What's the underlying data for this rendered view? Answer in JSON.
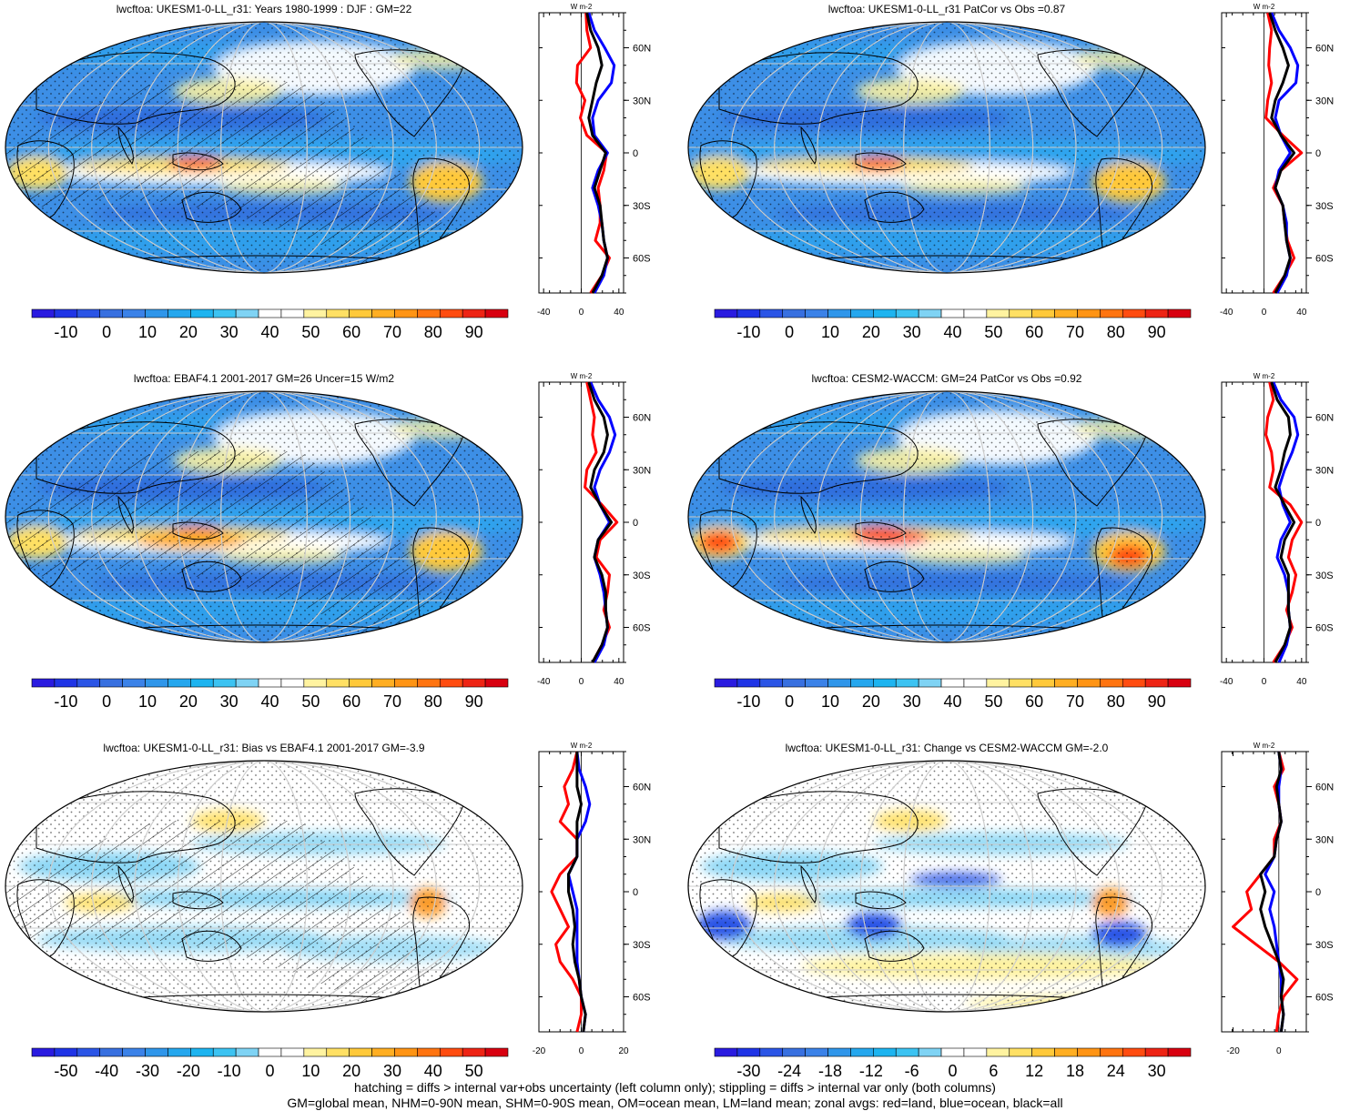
{
  "chart_data": [
    {
      "type": "heatmap",
      "title": "lwcftoa: UKESM1-0-LL_r31: Years 1980-1999 : DJF : GM=22",
      "colorbar": {
        "ticks": [
          "-10",
          "0",
          "10",
          "20",
          "30",
          "40",
          "50",
          "60",
          "70",
          "80",
          "90"
        ],
        "range": [
          -15,
          95
        ],
        "palette": "full"
      },
      "lat_labels": [
        "60N",
        "30N",
        "0",
        "30S",
        "60S"
      ],
      "zonal": {
        "xticks": [
          "-40",
          "0",
          "40"
        ],
        "xlim": [
          -45,
          45
        ],
        "unit": "W m-2",
        "lat": [
          80,
          70,
          60,
          50,
          40,
          30,
          20,
          10,
          0,
          -10,
          -20,
          -30,
          -40,
          -50,
          -60,
          -70,
          -80
        ],
        "land": [
          5,
          6,
          10,
          -4,
          -5,
          4,
          -1,
          6,
          27,
          24,
          18,
          20,
          20,
          15,
          30,
          22,
          10
        ],
        "ocean": [
          8,
          14,
          25,
          35,
          32,
          18,
          12,
          14,
          28,
          18,
          12,
          18,
          22,
          24,
          28,
          24,
          14
        ],
        "all": [
          6,
          10,
          18,
          22,
          16,
          12,
          8,
          12,
          26,
          20,
          14,
          20,
          22,
          24,
          28,
          22,
          12
        ]
      }
    },
    {
      "type": "heatmap",
      "title": "lwcftoa: UKESM1-0-LL_r31 PatCor vs Obs =0.87",
      "colorbar": {
        "ticks": [
          "-10",
          "0",
          "10",
          "20",
          "30",
          "40",
          "50",
          "60",
          "70",
          "80",
          "90"
        ],
        "range": [
          -15,
          95
        ],
        "palette": "full"
      },
      "lat_labels": [
        "60N",
        "30N",
        "0",
        "30S",
        "60S"
      ],
      "zonal": {
        "xticks": [
          "-40",
          "0",
          "40"
        ],
        "xlim": [
          -45,
          45
        ],
        "unit": "W m-2",
        "lat": [
          80,
          70,
          60,
          50,
          40,
          30,
          20,
          10,
          0,
          -10,
          -20,
          -30,
          -40,
          -50,
          -60,
          -70,
          -80
        ],
        "land": [
          4,
          8,
          6,
          5,
          8,
          4,
          2,
          20,
          40,
          18,
          10,
          20,
          22,
          25,
          32,
          22,
          10
        ],
        "ocean": [
          8,
          16,
          28,
          36,
          34,
          16,
          12,
          18,
          28,
          16,
          12,
          20,
          24,
          24,
          28,
          24,
          14
        ],
        "all": [
          6,
          12,
          20,
          26,
          20,
          12,
          8,
          18,
          32,
          18,
          12,
          20,
          22,
          24,
          28,
          22,
          12
        ]
      }
    },
    {
      "type": "heatmap",
      "title": "lwcftoa: EBAF4.1 2001-2017 GM=26 Uncer=15 W/m2",
      "colorbar": {
        "ticks": [
          "-10",
          "0",
          "10",
          "20",
          "30",
          "40",
          "50",
          "60",
          "70",
          "80",
          "90"
        ],
        "range": [
          -15,
          95
        ],
        "palette": "full"
      },
      "lat_labels": [
        "60N",
        "30N",
        "0",
        "30S",
        "60S"
      ],
      "zonal": {
        "xticks": [
          "-40",
          "0",
          "40"
        ],
        "xlim": [
          -45,
          45
        ],
        "unit": "W m-2",
        "lat": [
          80,
          70,
          60,
          50,
          40,
          30,
          20,
          10,
          0,
          -10,
          -20,
          -30,
          -40,
          -50,
          -60,
          -70,
          -80
        ],
        "land": [
          6,
          10,
          14,
          12,
          16,
          6,
          4,
          22,
          38,
          20,
          16,
          30,
          28,
          24,
          30,
          22,
          12
        ],
        "ocean": [
          10,
          18,
          30,
          36,
          30,
          20,
          14,
          20,
          30,
          18,
          14,
          20,
          24,
          26,
          28,
          24,
          14
        ],
        "all": [
          8,
          14,
          24,
          28,
          24,
          14,
          10,
          20,
          32,
          18,
          14,
          22,
          26,
          26,
          28,
          22,
          12
        ]
      }
    },
    {
      "type": "heatmap",
      "title": "lwcftoa: CESM2-WACCM: GM=24 PatCor vs Obs =0.92",
      "colorbar": {
        "ticks": [
          "-10",
          "0",
          "10",
          "20",
          "30",
          "40",
          "50",
          "60",
          "70",
          "80",
          "90"
        ],
        "range": [
          -15,
          95
        ],
        "palette": "full"
      },
      "lat_labels": [
        "60N",
        "30N",
        "0",
        "30S",
        "60S"
      ],
      "zonal": {
        "xticks": [
          "-40",
          "0",
          "40"
        ],
        "xlim": [
          -45,
          45
        ],
        "unit": "W m-2",
        "lat": [
          80,
          70,
          60,
          50,
          40,
          30,
          20,
          10,
          0,
          -10,
          -20,
          -30,
          -40,
          -50,
          -60,
          -70,
          -80
        ],
        "land": [
          6,
          10,
          4,
          2,
          8,
          10,
          6,
          28,
          40,
          30,
          26,
          34,
          30,
          24,
          30,
          22,
          10
        ],
        "ocean": [
          10,
          18,
          32,
          36,
          30,
          22,
          16,
          20,
          28,
          18,
          14,
          22,
          26,
          26,
          28,
          24,
          16
        ],
        "all": [
          8,
          14,
          26,
          28,
          22,
          18,
          12,
          22,
          32,
          22,
          18,
          26,
          26,
          26,
          28,
          22,
          12
        ]
      }
    },
    {
      "type": "heatmap",
      "title": "lwcftoa: UKESM1-0-LL_r31: Bias vs EBAF4.1 2001-2017 GM=-3.9",
      "colorbar": {
        "ticks": [
          "-50",
          "-40",
          "-30",
          "-20",
          "-10",
          "0",
          "10",
          "20",
          "30",
          "40",
          "50"
        ],
        "range": [
          -55,
          55
        ],
        "palette": "full"
      },
      "lat_labels": [
        "60N",
        "30N",
        "0",
        "30S",
        "60S"
      ],
      "zonal": {
        "xticks": [
          "-20",
          "0",
          "20"
        ],
        "xlim": [
          -20,
          20
        ],
        "unit": "W m-2",
        "lat": [
          80,
          70,
          60,
          50,
          40,
          30,
          20,
          10,
          0,
          -10,
          -20,
          -30,
          -40,
          -50,
          -60,
          -70,
          -80
        ],
        "land": [
          -2,
          -4,
          -8,
          -6,
          -10,
          -2,
          -2,
          -10,
          -14,
          -10,
          -6,
          -12,
          -10,
          -4,
          0,
          0,
          -2
        ],
        "ocean": [
          -2,
          -1,
          2,
          4,
          2,
          -2,
          -2,
          -6,
          -4,
          -2,
          -2,
          -2,
          -2,
          -1,
          0,
          2,
          1
        ],
        "all": [
          -2,
          -2,
          -2,
          0,
          -2,
          -2,
          -2,
          -6,
          -6,
          -4,
          -3,
          -4,
          -3,
          -1,
          0,
          2,
          1
        ]
      }
    },
    {
      "type": "heatmap",
      "title": "lwcftoa: UKESM1-0-LL_r31: Change vs CESM2-WACCM GM=-2.0",
      "colorbar": {
        "ticks": [
          "-30",
          "-24",
          "-18",
          "-12",
          "-6",
          "0",
          "6",
          "12",
          "18",
          "24",
          "30"
        ],
        "range": [
          -33,
          33
        ],
        "palette": "full"
      },
      "lat_labels": [
        "60N",
        "30N",
        "0",
        "30S",
        "60S"
      ],
      "zonal": {
        "xticks": [
          "-20",
          "0"
        ],
        "xlim": [
          -25,
          12
        ],
        "unit": "W m-2",
        "lat": [
          80,
          70,
          60,
          50,
          40,
          30,
          20,
          10,
          0,
          -10,
          -20,
          -30,
          -40,
          -50,
          -60,
          -70,
          -80
        ],
        "land": [
          0,
          2,
          -2,
          0,
          1,
          -2,
          -2,
          -8,
          -14,
          -12,
          -20,
          -10,
          0,
          8,
          2,
          0,
          -1
        ],
        "ocean": [
          0,
          1,
          0,
          0,
          1,
          -1,
          -2,
          -6,
          -2,
          -4,
          -2,
          -1,
          0,
          1,
          1,
          2,
          1
        ],
        "all": [
          0,
          1,
          -1,
          0,
          1,
          -1,
          -2,
          -8,
          -6,
          -8,
          -6,
          -3,
          0,
          2,
          1,
          2,
          1
        ]
      }
    }
  ],
  "footer": {
    "line1": "hatching = diffs > internal var+obs uncertainty (left column only); stippling = diffs > internal var only (both columns)",
    "line2": "GM=global mean, NHM=0-90N mean, SHM=0-90S mean, OM=ocean mean, LM=land mean; zonal avgs: red=land, blue=ocean, black=all"
  },
  "colors": {
    "land": "#ff0000",
    "ocean": "#0000ff",
    "all": "#000000"
  }
}
